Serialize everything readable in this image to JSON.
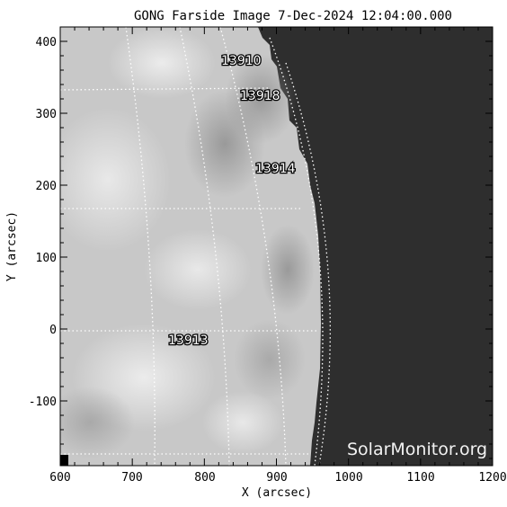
{
  "title": "GONG Farside Image  7-Dec-2024 12:04:00.000",
  "watermark": "SolarMonitor.org",
  "colors": {
    "disk_background": "#2e2e2e",
    "grid": "#ffffff"
  },
  "chart_data": {
    "type": "heatmap",
    "xlabel": "X (arcsec)",
    "ylabel": "Y (arcsec)",
    "xlim": [
      600,
      1200
    ],
    "ylim": [
      -190,
      420
    ],
    "x_ticks": [
      "600",
      "700",
      "800",
      "900",
      "1000",
      "1100",
      "1200"
    ],
    "y_ticks": [
      "400",
      "300",
      "200",
      "100",
      "0",
      "-100"
    ],
    "x_tick_values": [
      600,
      700,
      800,
      900,
      1000,
      1100,
      1200
    ],
    "y_tick_values": [
      400,
      300,
      200,
      100,
      0,
      -100
    ],
    "grid": true,
    "colormap": "grayscale",
    "active_regions": [
      {
        "label": "13910",
        "x": 868,
        "y": 373
      },
      {
        "label": "13918",
        "x": 893,
        "y": 323
      },
      {
        "label": "13914",
        "x": 915,
        "y": 223
      },
      {
        "label": "13913",
        "x": 745,
        "y": -13
      }
    ]
  }
}
